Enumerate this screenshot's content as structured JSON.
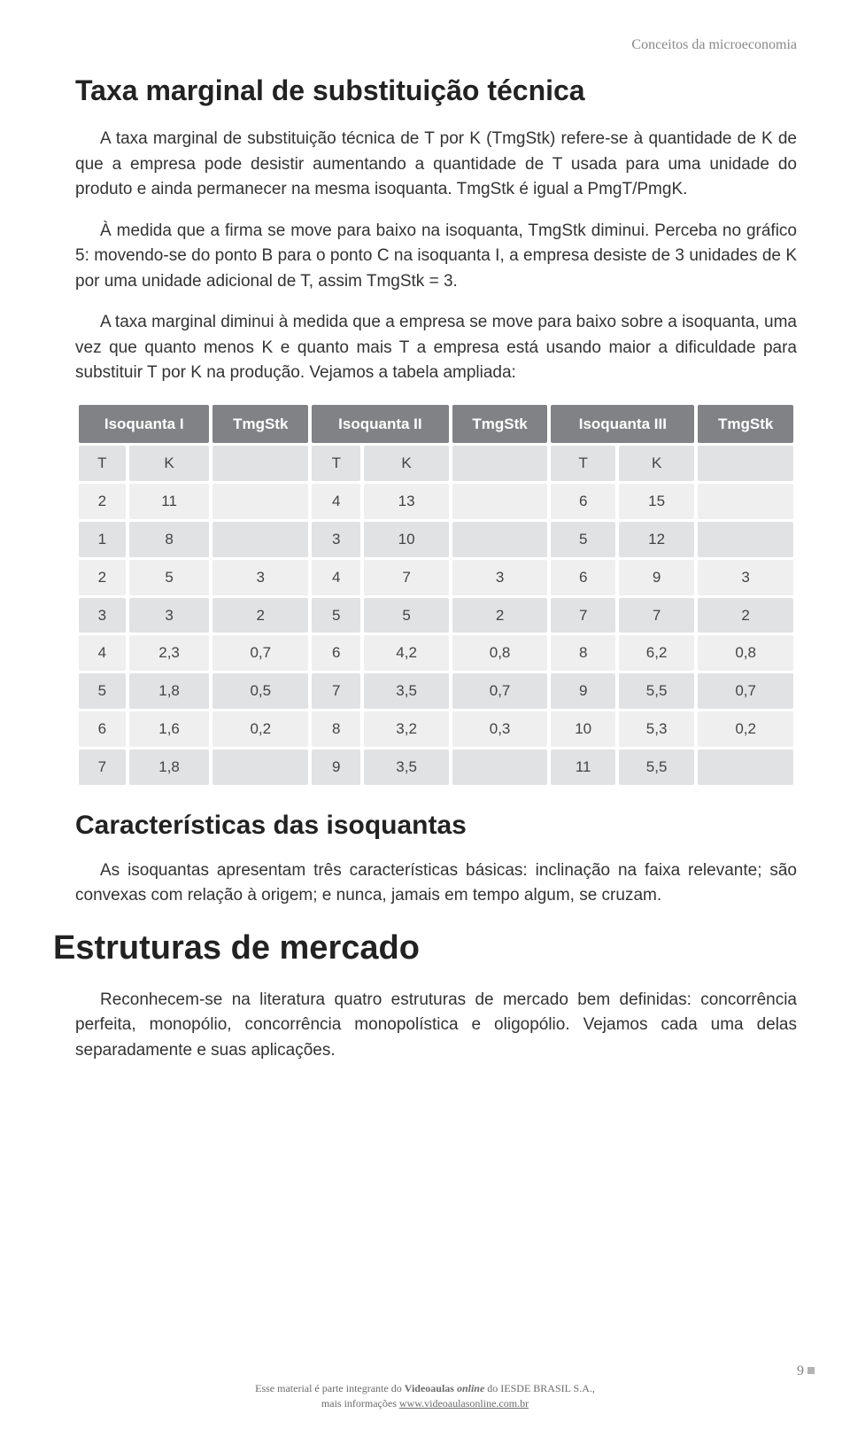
{
  "header": {
    "chapter": "Conceitos da microeconomia"
  },
  "sections": {
    "s1_title": "Taxa marginal de substituição técnica",
    "s1_p1": "A taxa marginal de substituição técnica de T por K (TmgStk) refere-se à quantidade de K de que a empresa pode desistir aumentando a quantidade de T usada para uma unidade do produto e ainda permanecer na mesma isoquanta. TmgStk é igual a PmgT/PmgK.",
    "s1_p2": "À medida que a firma se move para baixo na isoquanta, TmgStk diminui. Perceba no gráfico 5: movendo-se do ponto B para o ponto C na isoquanta I, a empresa desiste de 3 unidades de K por uma unidade adicional de T, assim TmgStk = 3.",
    "s1_p3": "A taxa marginal diminui à medida que a empresa se move para baixo sobre a isoquanta, uma vez que quanto menos K e quanto mais T a empresa está usando maior a dificuldade para substituir T por K na produção. Vejamos a tabela ampliada:",
    "s2_title": "Características das isoquantas",
    "s2_p1": "As isoquantas apresentam três características básicas: inclinação na faixa relevante; são convexas com relação à origem; e nunca, jamais em tempo algum, se cruzam.",
    "s3_title": "Estruturas de mercado",
    "s3_p1": "Reconhecem-se na literatura quatro estruturas de mercado bem definidas: concorrência perfeita, monopólio, concorrência monopolística e oligopólio. Vejamos cada uma delas separadamente e suas aplicações."
  },
  "table": {
    "headers": [
      "Isoquanta I",
      "TmgStk",
      "Isoquanta II",
      "TmgStk",
      "Isoquanta III",
      "TmgStk"
    ],
    "sublabels": {
      "T": "T",
      "K": "K"
    },
    "rows": [
      [
        "2",
        "11",
        "",
        "4",
        "13",
        "",
        "6",
        "15",
        ""
      ],
      [
        "1",
        "8",
        "",
        "3",
        "10",
        "",
        "5",
        "12",
        ""
      ],
      [
        "2",
        "5",
        "3",
        "4",
        "7",
        "3",
        "6",
        "9",
        "3"
      ],
      [
        "3",
        "3",
        "2",
        "5",
        "5",
        "2",
        "7",
        "7",
        "2"
      ],
      [
        "4",
        "2,3",
        "0,7",
        "6",
        "4,2",
        "0,8",
        "8",
        "6,2",
        "0,8"
      ],
      [
        "5",
        "1,8",
        "0,5",
        "7",
        "3,5",
        "0,7",
        "9",
        "5,5",
        "0,7"
      ],
      [
        "6",
        "1,6",
        "0,2",
        "8",
        "3,2",
        "0,3",
        "10",
        "5,3",
        "0,2"
      ],
      [
        "7",
        "1,8",
        "",
        "9",
        "3,5",
        "",
        "11",
        "5,5",
        ""
      ]
    ],
    "header_bg": "#808285",
    "row_bg_odd": "#e1e2e3",
    "row_bg_even": "#efefef"
  },
  "footer": {
    "page": "9",
    "line1_a": "Esse material é parte integrante do ",
    "line1_b": "Videoaulas ",
    "line1_c": "online",
    "line1_d": " do IESDE BRASIL S.A.,",
    "line2_a": "mais informações ",
    "line2_b": "www.videoaulasonline.com.br"
  },
  "colors": {
    "text": "#333333",
    "heading": "#222222",
    "chapter": "#888888",
    "footer": "#6b6b6b",
    "background": "#ffffff"
  }
}
